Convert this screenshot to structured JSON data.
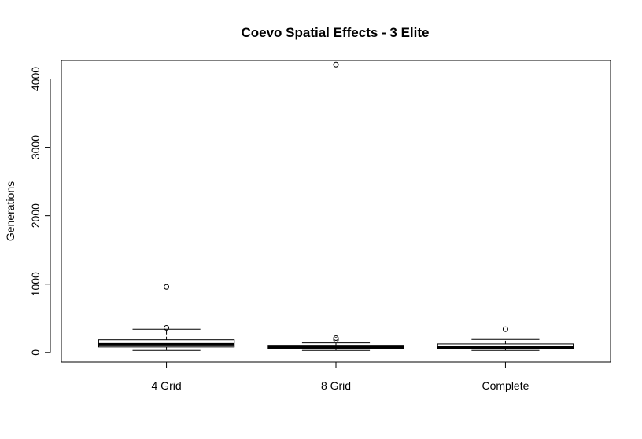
{
  "chart_data": {
    "type": "box",
    "title": "Coevo Spatial Effects - 3 Elite",
    "xlabel": "",
    "ylabel": "Generations",
    "ylim": [
      -140,
      4270
    ],
    "yticks": [
      0,
      1000,
      2000,
      3000,
      4000
    ],
    "categories": [
      "4 Grid",
      "8 Grid",
      "Complete"
    ],
    "boxes": [
      {
        "category": "4 Grid",
        "whisker_low": 30,
        "q1": 80,
        "median": 120,
        "q3": 185,
        "whisker_high": 340,
        "outliers": [
          360,
          960
        ]
      },
      {
        "category": "8 Grid",
        "whisker_low": 30,
        "q1": 60,
        "median": 80,
        "q3": 105,
        "whisker_high": 140,
        "outliers": [
          185,
          210,
          4210
        ]
      },
      {
        "category": "Complete",
        "whisker_low": 30,
        "q1": 55,
        "median": 75,
        "q3": 125,
        "whisker_high": 190,
        "outliers": [
          340
        ]
      }
    ],
    "grid": false,
    "legend": "none"
  }
}
